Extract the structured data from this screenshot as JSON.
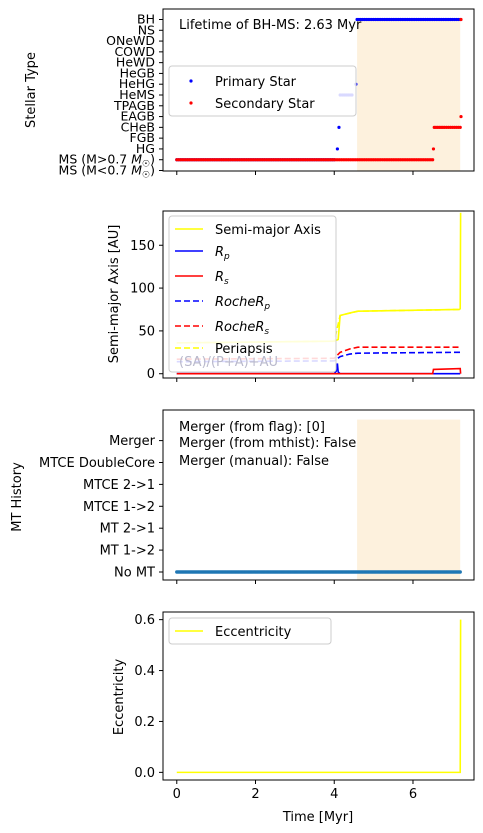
{
  "chart_data": [
    {
      "type": "scatter",
      "ylabel": "Stellar Type",
      "xlim": [
        -0.35,
        7.55
      ],
      "y_categories": [
        "MS (M<0.7 M☉)",
        "MS (M>0.7 M☉)",
        "HG",
        "FGB",
        "CHeB",
        "EAGB",
        "TPAGB",
        "HeMS",
        "HeHG",
        "HeGB",
        "HeWD",
        "COWD",
        "ONeWD",
        "NS",
        "BH"
      ],
      "annotation": "Lifetime of BH-MS: 2.63 Myr",
      "shaded_span": [
        4.58,
        7.2
      ],
      "legend": "center-left",
      "series": [
        {
          "name": "Primary Star",
          "color": "#0000ff",
          "points": [
            [
              0,
              1
            ],
            [
              0.5,
              1
            ],
            [
              1,
              1
            ],
            [
              1.5,
              1
            ],
            [
              2,
              1
            ],
            [
              2.5,
              1
            ],
            [
              3,
              1
            ],
            [
              3.5,
              1
            ],
            [
              4.0,
              1
            ],
            [
              4.08,
              2
            ],
            [
              4.12,
              4
            ],
            [
              4.15,
              7
            ],
            [
              4.3,
              7
            ],
            [
              4.45,
              7
            ],
            [
              4.55,
              8
            ],
            [
              4.58,
              14
            ],
            [
              5.0,
              14
            ],
            [
              5.5,
              14
            ],
            [
              6.0,
              14
            ],
            [
              6.5,
              14
            ],
            [
              7.0,
              14
            ],
            [
              7.2,
              14
            ]
          ]
        },
        {
          "name": "Secondary Star",
          "color": "#ff0000",
          "points": [
            [
              0,
              1
            ],
            [
              0.5,
              1
            ],
            [
              1,
              1
            ],
            [
              1.5,
              1
            ],
            [
              2,
              1
            ],
            [
              2.5,
              1
            ],
            [
              3,
              1
            ],
            [
              3.5,
              1
            ],
            [
              4.0,
              1
            ],
            [
              4.5,
              1
            ],
            [
              5.0,
              1
            ],
            [
              5.5,
              1
            ],
            [
              6.0,
              1
            ],
            [
              6.5,
              1
            ],
            [
              6.52,
              2
            ],
            [
              6.54,
              4
            ],
            [
              6.8,
              4
            ],
            [
              7.0,
              4
            ],
            [
              7.2,
              4
            ],
            [
              7.22,
              5
            ],
            [
              7.22,
              14
            ]
          ]
        }
      ]
    },
    {
      "type": "line",
      "ylabel": "Semi-major Axis [AU]",
      "xlim": [
        -0.35,
        7.55
      ],
      "ylim": [
        -5,
        190
      ],
      "yticks": [
        0,
        50,
        100,
        150
      ],
      "legend": "top-left",
      "overlapped_text": "(SA)/(P+A)+AU",
      "series": [
        {
          "name": "Semi-major Axis",
          "color": "#ffff00",
          "style": "solid",
          "x": [
            0,
            4.0,
            4.1,
            4.15,
            4.4,
            4.6,
            7.18,
            7.2,
            7.21
          ],
          "y": [
            36,
            38,
            40,
            68,
            71,
            73,
            75,
            76,
            188
          ]
        },
        {
          "name": "R_p",
          "color": "#0000ff",
          "style": "solid",
          "x": [
            0,
            4.0,
            4.05,
            4.08,
            4.1,
            4.15,
            4.2,
            7.2
          ],
          "y": [
            0,
            0,
            3,
            12,
            2,
            0,
            0,
            0
          ]
        },
        {
          "name": "R_s",
          "color": "#ff0000",
          "style": "solid",
          "x": [
            0,
            6.5,
            6.52,
            7.2,
            7.21
          ],
          "y": [
            0,
            0,
            5,
            6,
            0
          ]
        },
        {
          "name": "RocheR_p",
          "color": "#0000ff",
          "style": "dashed",
          "x": [
            0,
            4.0,
            4.15,
            4.4,
            4.6,
            7.2
          ],
          "y": [
            14,
            15,
            20,
            23,
            24,
            25
          ]
        },
        {
          "name": "RocheR_s",
          "color": "#ff0000",
          "style": "dashed",
          "x": [
            0,
            4.0,
            4.15,
            4.4,
            4.6,
            7.2
          ],
          "y": [
            17,
            18,
            25,
            29,
            31,
            31
          ]
        },
        {
          "name": "Periapsis",
          "color": "#ffff00",
          "style": "dashed",
          "x": [
            0,
            4.0,
            4.15,
            4.6,
            7.2
          ],
          "y": [
            36,
            38,
            68,
            73,
            75
          ]
        }
      ]
    },
    {
      "type": "scatter",
      "ylabel": "MT History",
      "xlim": [
        -0.35,
        7.55
      ],
      "y_categories": [
        "No MT",
        "MT 1->2",
        "MT 2->1",
        "MTCE 1->2",
        "MTCE 2->1",
        "MTCE DoubleCore",
        "Merger"
      ],
      "shaded_span": [
        4.58,
        7.2
      ],
      "annotation_lines": [
        "Merger (from flag): [0]",
        "Merger (from mthist): False",
        "Merger (manual): False"
      ],
      "series": [
        {
          "color": "#1f77b4",
          "x_range": [
            0,
            7.2
          ],
          "y": 0
        }
      ]
    },
    {
      "type": "line",
      "ylabel": "Eccentricity",
      "xlabel": "Time [Myr]",
      "xlim": [
        -0.35,
        7.55
      ],
      "ylim": [
        -0.03,
        0.63
      ],
      "yticks": [
        0.0,
        0.2,
        0.4,
        0.6
      ],
      "xticks": [
        0,
        2,
        4,
        6
      ],
      "legend": "top-left",
      "series": [
        {
          "name": "Eccentricity",
          "color": "#ffff00",
          "x": [
            0,
            7.19,
            7.2,
            7.21
          ],
          "y": [
            0,
            0,
            0,
            0.6
          ]
        }
      ]
    }
  ]
}
